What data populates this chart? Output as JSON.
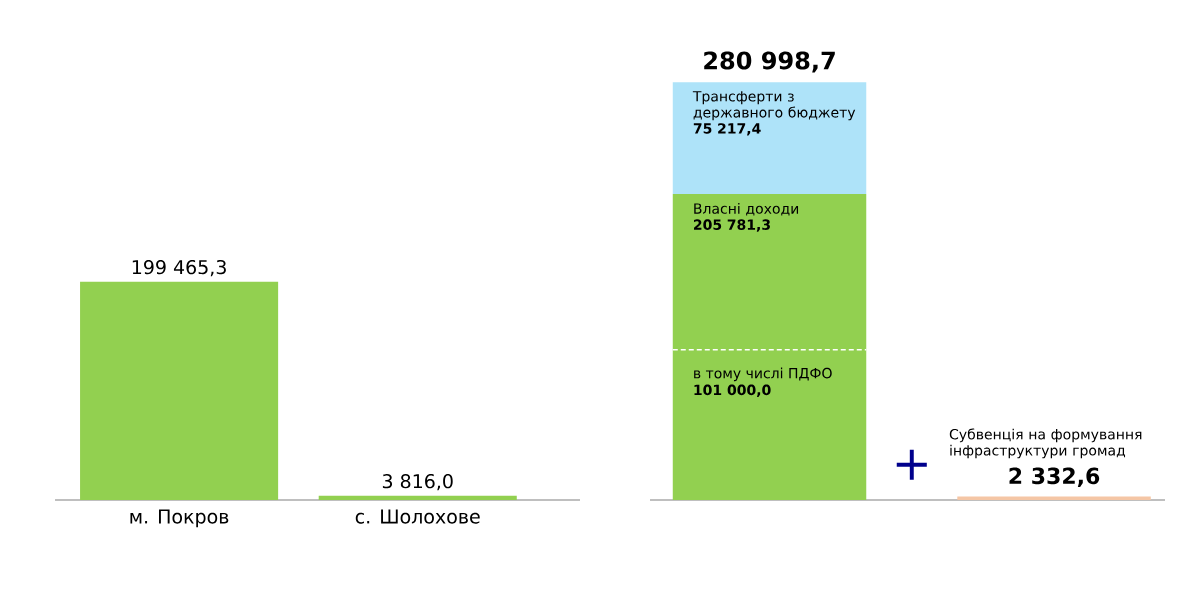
{
  "chart_data": [
    {
      "type": "bar",
      "categories": [
        "м. Покров",
        "с. Шолохове"
      ],
      "values": [
        199465.3,
        3816.0
      ],
      "value_labels": [
        "199 465,3",
        "3 816,0"
      ],
      "color": "#92d050"
    },
    {
      "type": "bar",
      "stacked": true,
      "categories": [
        null,
        null
      ],
      "series": [
        {
          "name": "Власні доходи",
          "color": "#92d050",
          "values": [
            205781.3,
            null
          ],
          "value_labels": [
            "205 781,3",
            null
          ]
        },
        {
          "name": "Трансферти з державного бюджету",
          "color": "#aee3f9",
          "values": [
            75217.4,
            null
          ],
          "value_labels": [
            "75 217,4",
            null
          ]
        },
        {
          "name": "Субвенція на формування інфраструктури громад",
          "color": "#f5c6a5",
          "values": [
            null,
            2332.6
          ],
          "value_labels": [
            null,
            "2 332,6"
          ]
        }
      ],
      "totals": [
        "280 998,7",
        null
      ],
      "ref_lines": [
        {
          "axis": "y",
          "value": 101000,
          "label": "в тому числі ПДФО",
          "line_style": "dashed",
          "color": "#ffffff"
        }
      ],
      "annotations": [
        {
          "text": "101 000,0",
          "y": 101000
        },
        "+"
      ]
    }
  ]
}
